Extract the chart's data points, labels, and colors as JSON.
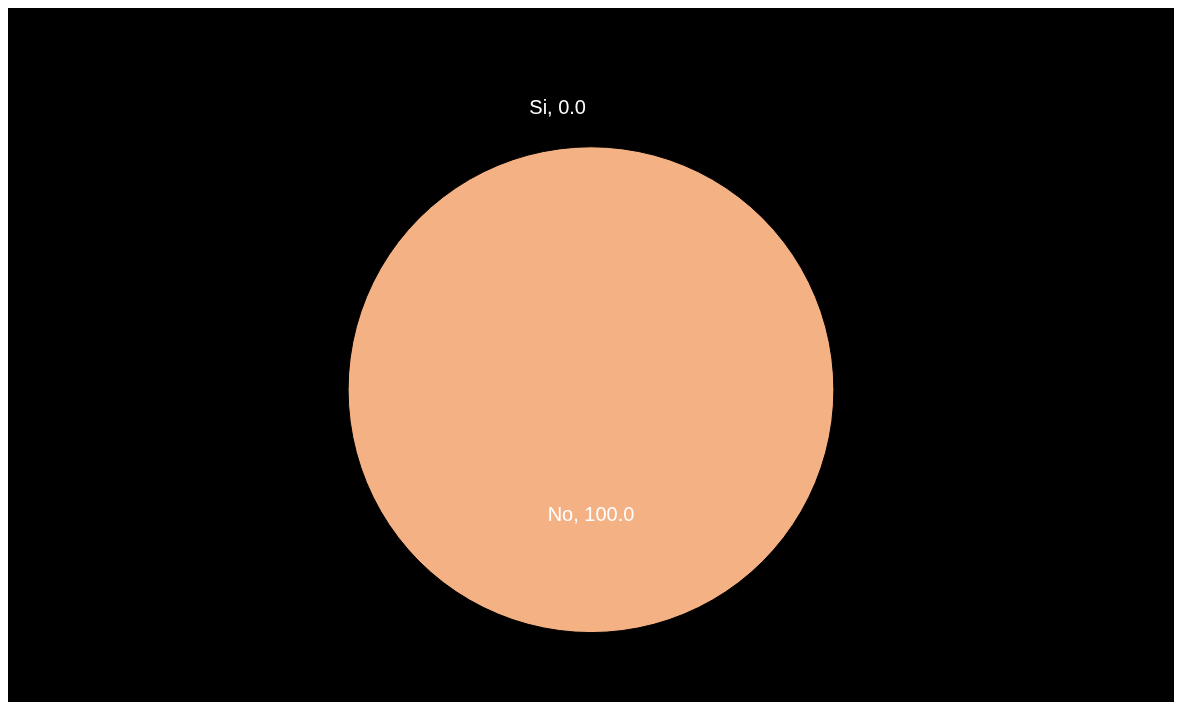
{
  "chart_data": {
    "type": "pie",
    "categories": [
      "Si",
      "No"
    ],
    "values": [
      0,
      100
    ],
    "value_labels": [
      ", 0.0",
      ", 100.0"
    ],
    "colors": [
      "#5b9bd5",
      "#f4b183"
    ],
    "legend": false
  }
}
